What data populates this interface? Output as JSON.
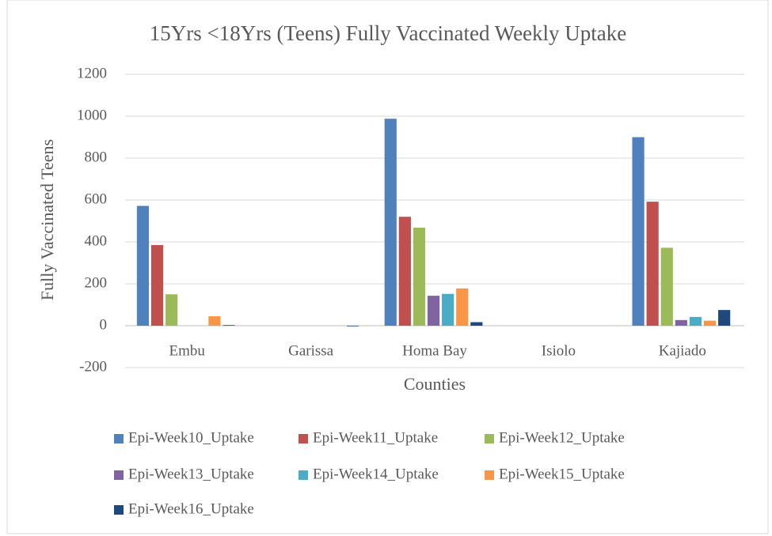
{
  "chart_data": {
    "type": "bar",
    "title": "15Yrs <18Yrs (Teens) Fully Vaccinated Weekly Uptake",
    "x_label": "Counties",
    "y_label": "Fully Vaccinated Teens",
    "categories": [
      "Embu",
      "Garissa",
      "Homa Bay",
      "Isiolo",
      "Kajiado"
    ],
    "series": [
      {
        "name": "Epi-Week10_Uptake",
        "color": "#4f81bd",
        "values": [
          572,
          0,
          988,
          0,
          900
        ]
      },
      {
        "name": "Epi-Week11_Uptake",
        "color": "#c0504d",
        "values": [
          385,
          0,
          520,
          0,
          592
        ]
      },
      {
        "name": "Epi-Week12_Uptake",
        "color": "#9bbb59",
        "values": [
          150,
          0,
          468,
          0,
          372
        ]
      },
      {
        "name": "Epi-Week13_Uptake",
        "color": "#8064a2",
        "values": [
          0,
          0,
          143,
          0,
          27
        ]
      },
      {
        "name": "Epi-Week14_Uptake",
        "color": "#4bacc6",
        "values": [
          0,
          0,
          152,
          0,
          42
        ]
      },
      {
        "name": "Epi-Week15_Uptake",
        "color": "#f79646",
        "values": [
          45,
          0,
          178,
          0,
          24
        ]
      },
      {
        "name": "Epi-Week16_Uptake",
        "color": "#1f497d",
        "values": [
          3,
          -3,
          17,
          0,
          75
        ]
      }
    ],
    "ylim": [
      -200,
      1200
    ],
    "yticks": [
      -200,
      0,
      200,
      400,
      600,
      800,
      1000,
      1200
    ],
    "grid": true,
    "legend": "bottom"
  }
}
